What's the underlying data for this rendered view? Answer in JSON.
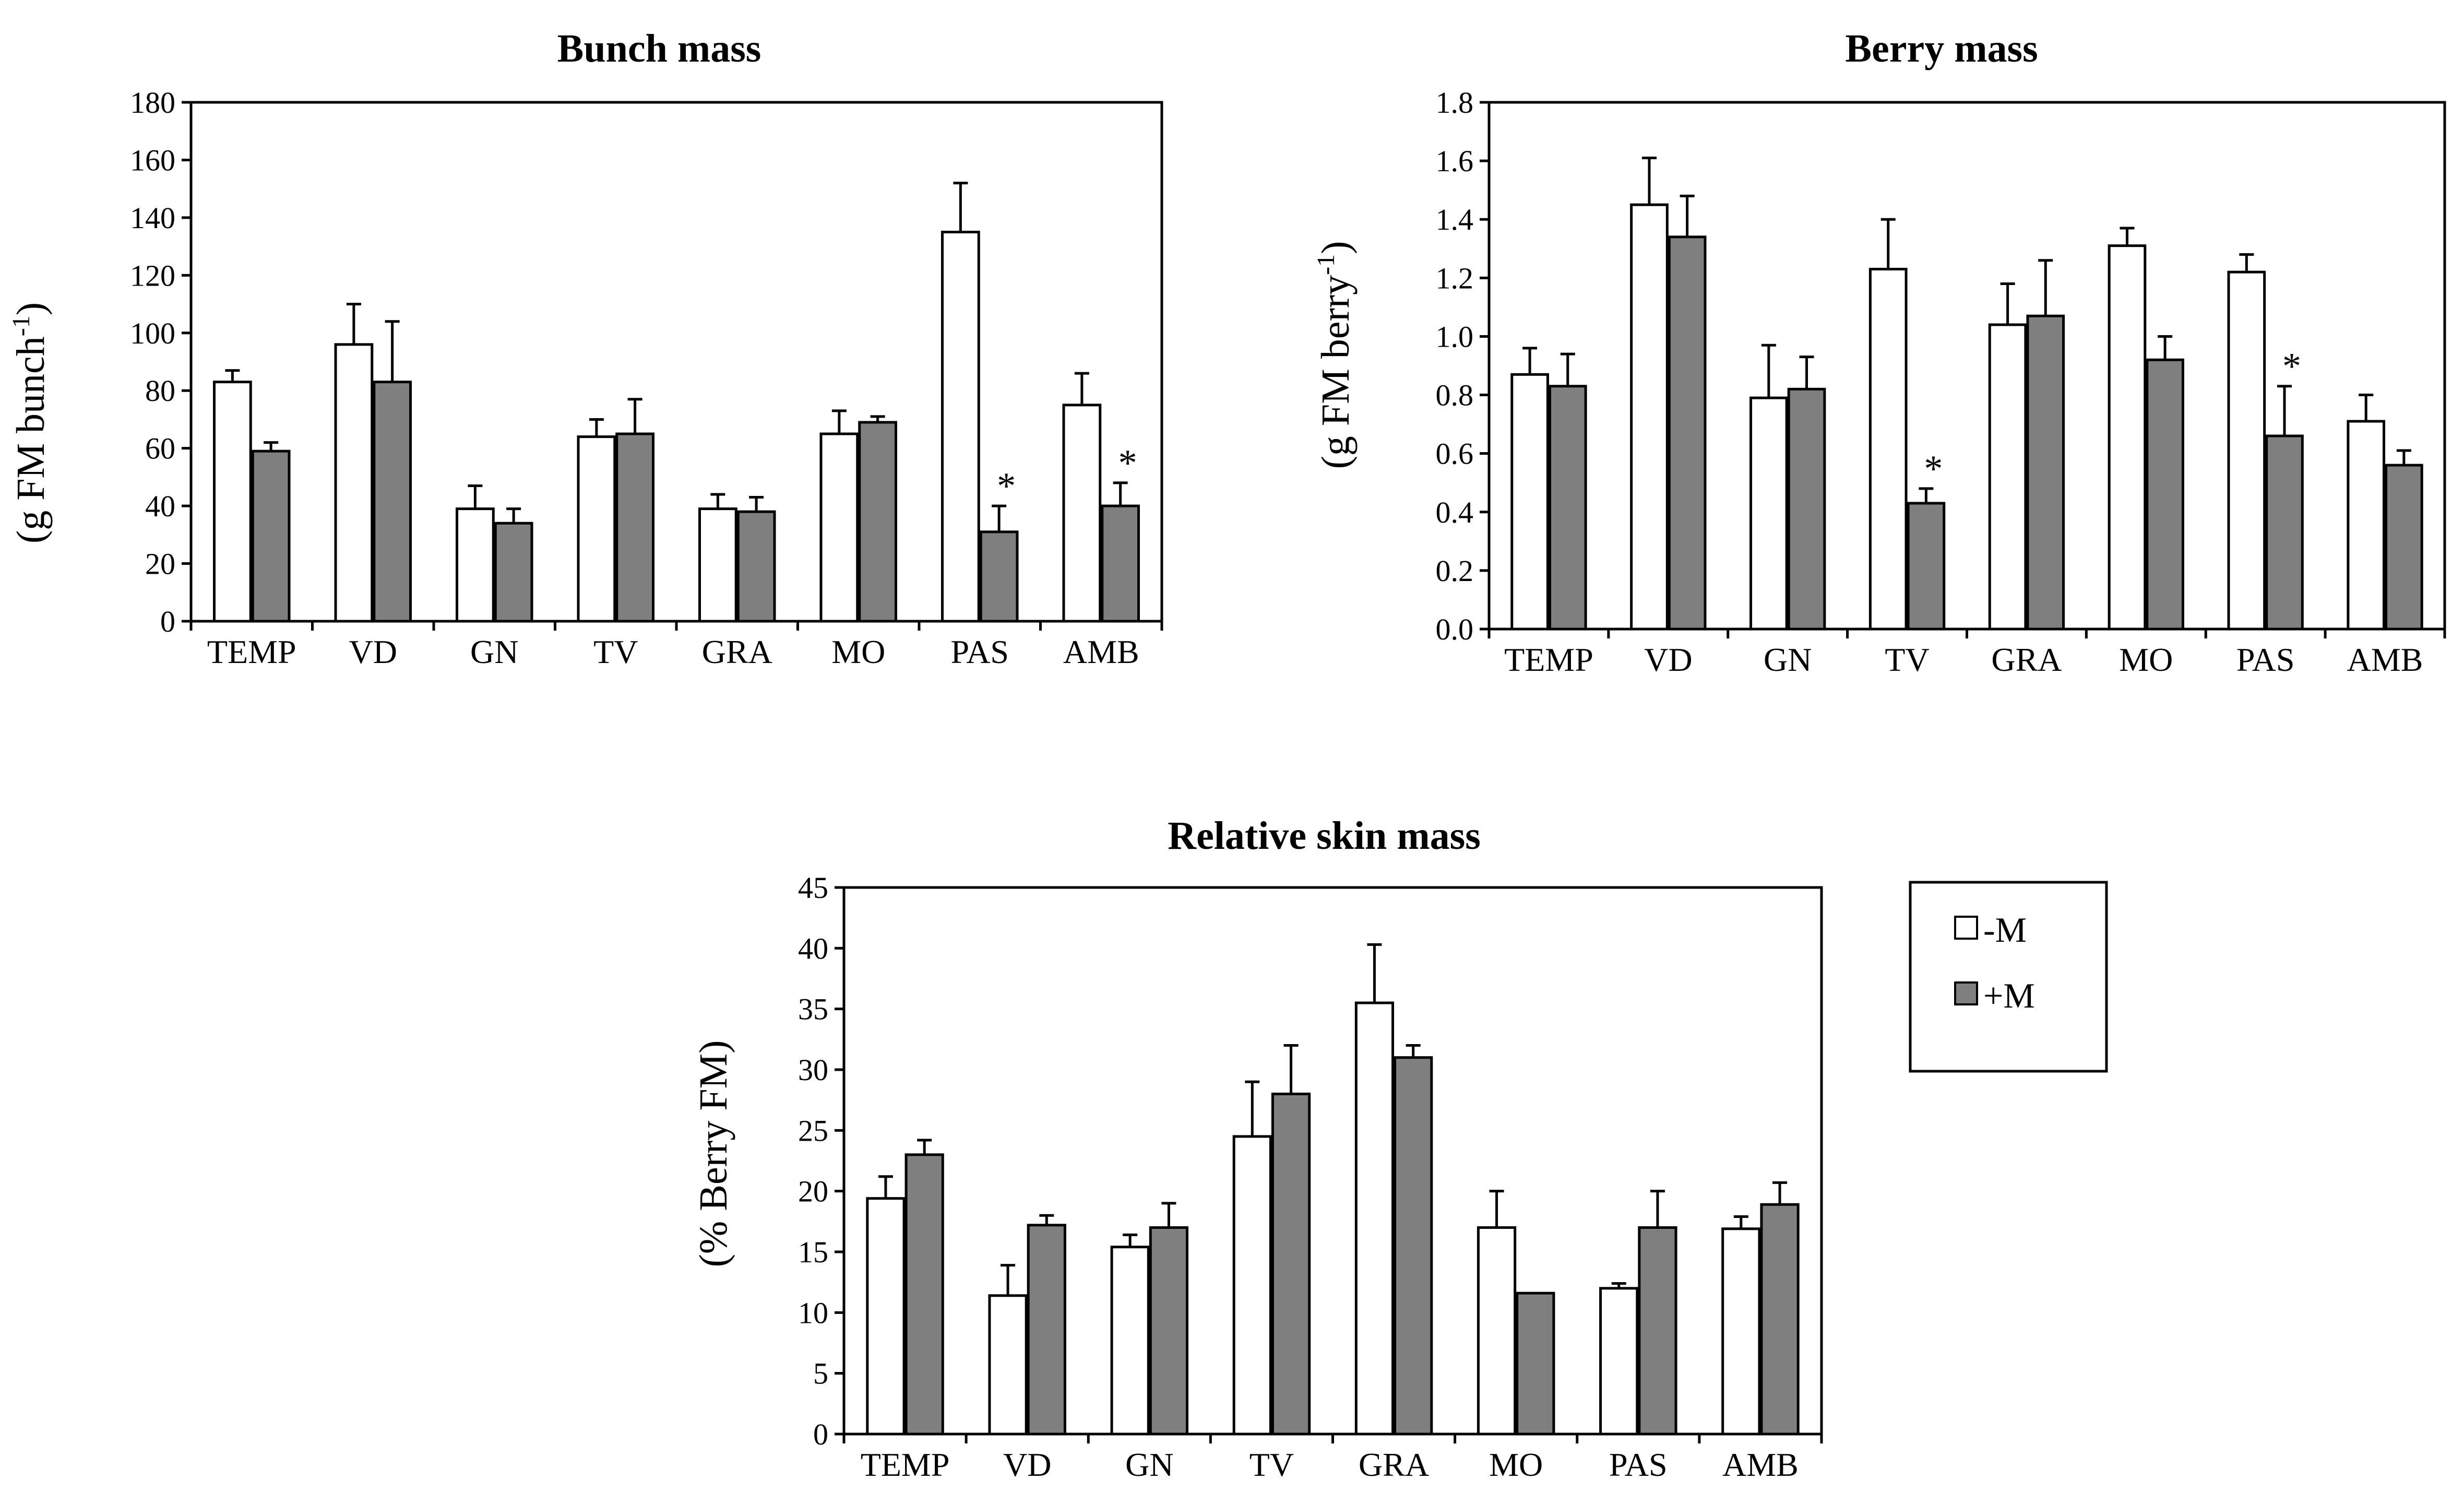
{
  "chart_data": [
    {
      "type": "bar",
      "title": "Bunch mass",
      "ylabel_prefix": "(g FM bunch",
      "ylabel_sup": "-1",
      "ylabel_suffix": ")",
      "ylim": [
        0,
        180
      ],
      "yticks": [
        0,
        20,
        40,
        60,
        80,
        100,
        120,
        140,
        160,
        180
      ],
      "ytick_labels": [
        "0",
        "20",
        "40",
        "60",
        "80",
        "100",
        "120",
        "140",
        "160",
        "180"
      ],
      "categories": [
        "TEMP",
        "VD",
        "GN",
        "TV",
        "GRA",
        "MO",
        "PAS",
        "AMB"
      ],
      "series": [
        {
          "name": "-M",
          "values": [
            83,
            96,
            39,
            64,
            39,
            65,
            135,
            75
          ],
          "errors": [
            4,
            14,
            8,
            6,
            5,
            8,
            17,
            11
          ],
          "significant": [
            false,
            false,
            false,
            false,
            false,
            false,
            false,
            false
          ]
        },
        {
          "name": "+M",
          "values": [
            59,
            83,
            34,
            65,
            38,
            69,
            31,
            40
          ],
          "errors": [
            3,
            21,
            5,
            12,
            5,
            2,
            9,
            8
          ],
          "significant": [
            false,
            false,
            false,
            false,
            false,
            false,
            true,
            true
          ]
        }
      ],
      "significance_marker": "*"
    },
    {
      "type": "bar",
      "title": "Berry mass",
      "ylabel_prefix": "(g FM berry",
      "ylabel_sup": "-1",
      "ylabel_suffix": ")",
      "ylim": [
        0,
        1.8
      ],
      "yticks": [
        0,
        0.2,
        0.4,
        0.6,
        0.8,
        1.0,
        1.2,
        1.4,
        1.6,
        1.8
      ],
      "ytick_labels": [
        "0.0",
        "0.2",
        "0.4",
        "0.6",
        "0.8",
        "1.0",
        "1.2",
        "1.4",
        "1.6",
        "1.8"
      ],
      "categories": [
        "TEMP",
        "VD",
        "GN",
        "TV",
        "GRA",
        "MO",
        "PAS",
        "AMB"
      ],
      "series": [
        {
          "name": "-M",
          "values": [
            0.87,
            1.45,
            0.79,
            1.23,
            1.04,
            1.31,
            1.22,
            0.71
          ],
          "errors": [
            0.09,
            0.16,
            0.18,
            0.17,
            0.14,
            0.06,
            0.06,
            0.09
          ],
          "significant": [
            false,
            false,
            false,
            false,
            false,
            false,
            false,
            false
          ]
        },
        {
          "name": "+M",
          "values": [
            0.83,
            1.34,
            0.82,
            0.43,
            1.07,
            0.92,
            0.66,
            0.56
          ],
          "errors": [
            0.11,
            0.14,
            0.11,
            0.05,
            0.19,
            0.08,
            0.17,
            0.05
          ],
          "significant": [
            false,
            false,
            false,
            true,
            false,
            false,
            true,
            false
          ]
        }
      ],
      "significance_marker": "*"
    },
    {
      "type": "bar",
      "title": "Relative skin mass",
      "ylabel_prefix": "(% Berry  FM)",
      "ylabel_sup": "",
      "ylabel_suffix": "",
      "ylim": [
        0,
        45
      ],
      "yticks": [
        0,
        5,
        10,
        15,
        20,
        25,
        30,
        35,
        40,
        45
      ],
      "ytick_labels": [
        "0",
        "5",
        "10",
        "15",
        "20",
        "25",
        "30",
        "35",
        "40",
        "45"
      ],
      "categories": [
        "TEMP",
        "VD",
        "GN",
        "TV",
        "GRA",
        "MO",
        "PAS",
        "AMB"
      ],
      "series": [
        {
          "name": "-M",
          "values": [
            19.4,
            11.4,
            15.4,
            24.5,
            35.5,
            17.0,
            12.0,
            16.9
          ],
          "errors": [
            1.8,
            2.5,
            1.0,
            4.5,
            4.8,
            3.0,
            0.4,
            1.0
          ],
          "significant": [
            false,
            false,
            false,
            false,
            false,
            false,
            false,
            false
          ]
        },
        {
          "name": "+M",
          "values": [
            23.0,
            17.2,
            17.0,
            28.0,
            31.0,
            11.6,
            17.0,
            18.9
          ],
          "errors": [
            1.2,
            0.8,
            2.0,
            4.0,
            1.0,
            0.0,
            3.0,
            1.8
          ],
          "significant": [
            false,
            false,
            false,
            false,
            false,
            false,
            false,
            false
          ]
        }
      ],
      "significance_marker": "*"
    }
  ],
  "legend": {
    "items": [
      {
        "label": "-M",
        "color": "#ffffff"
      },
      {
        "label": "+M",
        "color": "#7f7f7f"
      }
    ]
  },
  "colors": {
    "minus_m": "#ffffff",
    "plus_m": "#7f7f7f",
    "stroke": "#000000"
  }
}
